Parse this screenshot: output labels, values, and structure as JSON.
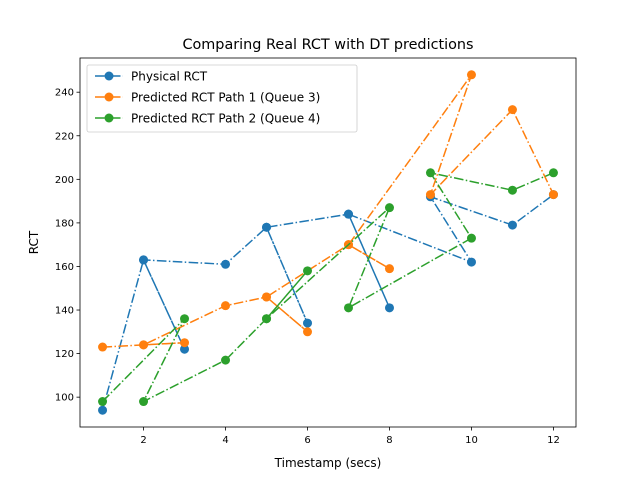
{
  "chart_data": {
    "type": "line",
    "title": "Comparing Real RCT with DT predictions",
    "xlabel": "Timestamp (secs)",
    "ylabel": "RCT",
    "xlim": [
      0.45,
      12.55
    ],
    "ylim": [
      86.3,
      255.7
    ],
    "xticks": [
      2,
      4,
      6,
      8,
      10,
      12
    ],
    "yticks": [
      100,
      120,
      140,
      160,
      180,
      200,
      220,
      240
    ],
    "legend_position": "top-left",
    "grid": false,
    "series": [
      {
        "name": "Physical RCT",
        "color": "#1f77b4",
        "x": [
          1,
          2,
          3,
          2,
          4,
          5,
          6,
          5,
          7,
          8,
          7,
          10,
          9,
          11,
          12
        ],
        "y": [
          94,
          163,
          122,
          163,
          161,
          178,
          134,
          178,
          184,
          141,
          184,
          162,
          192,
          179,
          193
        ]
      },
      {
        "name": "Predicted RCT Path 1 (Queue 3)",
        "color": "#ff7f0e",
        "x": [
          1,
          2,
          3,
          2,
          4,
          5,
          6,
          5,
          7,
          8,
          7,
          10,
          9,
          11,
          12
        ],
        "y": [
          123,
          124,
          125,
          124,
          142,
          146,
          130,
          146,
          170,
          159,
          170,
          248,
          193,
          232,
          193
        ]
      },
      {
        "name": "Predicted RCT Path 2 (Queue 4)",
        "color": "#2ca02c",
        "x": [
          1,
          3,
          2,
          4,
          5,
          6,
          5,
          8,
          7,
          10,
          9,
          11,
          12
        ],
        "y": [
          98,
          136,
          98,
          117,
          136,
          158,
          136,
          187,
          141,
          173,
          203,
          195,
          203
        ]
      }
    ]
  }
}
